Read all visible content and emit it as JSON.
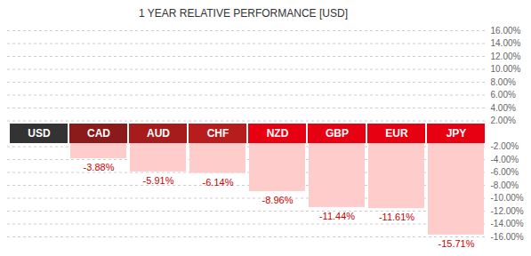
{
  "chart_data": {
    "type": "bar",
    "title": "1 YEAR RELATIVE PERFORMANCE [USD]",
    "categories": [
      "USD",
      "CAD",
      "AUD",
      "CHF",
      "NZD",
      "GBP",
      "EUR",
      "JPY"
    ],
    "values": [
      null,
      -3.88,
      -5.91,
      -6.14,
      -8.96,
      -11.44,
      -11.61,
      -15.71
    ],
    "value_labels": [
      null,
      "-3.88%",
      "-5.91%",
      "-6.14%",
      "-8.96%",
      "-11.44%",
      "-11.61%",
      "-15.71%"
    ],
    "color": "#ffcccc",
    "colors": [
      "#333333",
      "#8b1a1a",
      "#a61c1c",
      "#b81d1d",
      "#e60012",
      "#e60012",
      "#e60012",
      "#e60012"
    ],
    "ylim": [
      -16,
      16
    ],
    "yticks": [
      {
        "value": 16,
        "label": "16.00%"
      },
      {
        "value": 14,
        "label": "14.00%"
      },
      {
        "value": 12,
        "label": "12.00%"
      },
      {
        "value": 10,
        "label": "10.00%"
      },
      {
        "value": 8,
        "label": "8.00%"
      },
      {
        "value": 6,
        "label": "6.00%"
      },
      {
        "value": 4,
        "label": "4.00%"
      },
      {
        "value": 2,
        "label": "2.00%"
      },
      {
        "value": -2,
        "label": "-2.00%"
      },
      {
        "value": -4,
        "label": "-4.00%"
      },
      {
        "value": -6,
        "label": "-6.00%"
      },
      {
        "value": -8,
        "label": "-8.00%"
      },
      {
        "value": -10,
        "label": "-10.00%"
      },
      {
        "value": -12,
        "label": "-12.00%"
      },
      {
        "value": -14,
        "label": "-14.00%"
      },
      {
        "value": -16,
        "label": "-16.00%"
      }
    ],
    "grid": true,
    "data_labels": true
  }
}
